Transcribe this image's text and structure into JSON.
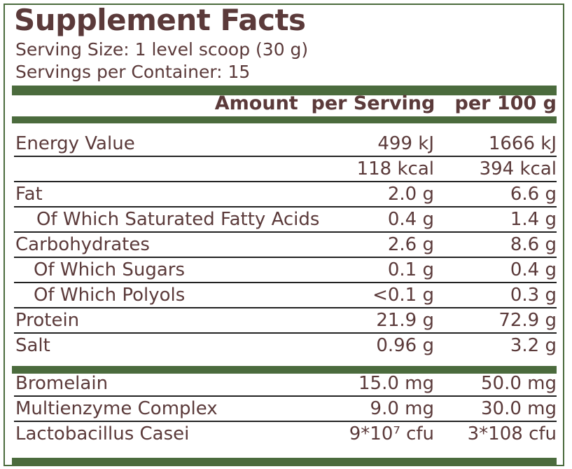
{
  "title": "Supplement Facts",
  "serving_size": "Serving Size: 1 level scoop (30 g)",
  "servings_per_container": "Servings per Container: 15",
  "header": {
    "amount": "Amount  per Serving",
    "per100": "per 100 g"
  },
  "nutrients": [
    {
      "label": "Energy Value",
      "per_serving": "499 kJ",
      "per_100g": "1666 kJ"
    },
    {
      "label": "",
      "per_serving": "118 kcal",
      "per_100g": "394 kcal"
    },
    {
      "label": "Fat",
      "per_serving": "2.0 g",
      "per_100g": "6.6 g"
    },
    {
      "label": "Of Which Saturated Fatty Acids",
      "per_serving": "0.4 g",
      "per_100g": "1.4 g"
    },
    {
      "label": "Carbohydrates",
      "per_serving": "2.6 g",
      "per_100g": "8.6 g"
    },
    {
      "label": "Of Which Sugars",
      "per_serving": "0.1 g",
      "per_100g": "0.4 g"
    },
    {
      "label": "Of Which Polyols",
      "per_serving": "<0.1 g",
      "per_100g": "0.3 g"
    },
    {
      "label": "Protein",
      "per_serving": "21.9 g",
      "per_100g": "72.9 g"
    },
    {
      "label": "Salt",
      "per_serving": "0.96 g",
      "per_100g": "3.2 g"
    }
  ],
  "actives": [
    {
      "label": "Bromelain",
      "per_serving": "15.0 mg",
      "per_100g": "50.0 mg"
    },
    {
      "label": "Multienzyme Complex",
      "per_serving": "9.0 mg",
      "per_100g": "30.0 mg"
    },
    {
      "label": "Lactobacillus Casei",
      "per_serving": "9*10⁷ cfu",
      "per_100g": "3*108 cfu"
    }
  ],
  "colors": {
    "accent": "#4b6b3d",
    "text": "#5b3a3a"
  }
}
